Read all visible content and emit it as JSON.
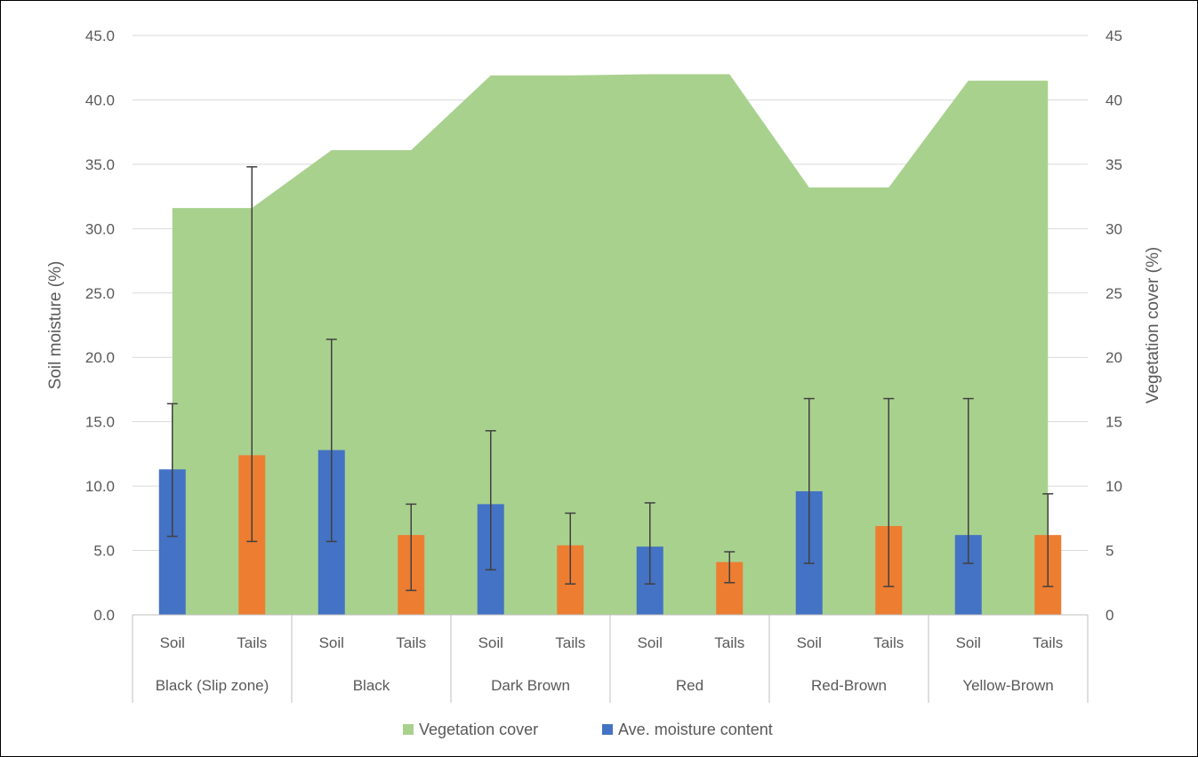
{
  "chart_data": {
    "type": "bar",
    "groups": [
      "Black (Slip zone)",
      "Black",
      "Dark Brown",
      "Red",
      "Red-Brown",
      "Yellow-Brown"
    ],
    "categories": [
      "Soil",
      "Tails",
      "Soil",
      "Tails",
      "Soil",
      "Tails",
      "Soil",
      "Tails",
      "Soil",
      "Tails",
      "Soil",
      "Tails"
    ],
    "series": [
      {
        "name": "Ave. moisture content",
        "type": "bar",
        "axis": "left",
        "color_soil": "#4472C4",
        "color_tails": "#ED7D31",
        "values": [
          11.3,
          12.4,
          12.8,
          6.2,
          8.6,
          5.4,
          5.3,
          4.1,
          9.6,
          6.9,
          6.2,
          6.2
        ],
        "error_low": [
          6.1,
          5.7,
          5.7,
          1.9,
          3.5,
          2.4,
          2.4,
          2.5,
          4.0,
          2.2,
          4.0,
          2.2
        ],
        "error_high": [
          16.4,
          34.8,
          21.4,
          8.6,
          14.3,
          7.9,
          8.7,
          4.9,
          16.8,
          16.8,
          16.8,
          9.4
        ]
      },
      {
        "name": "Vegetation cover",
        "type": "area",
        "axis": "right",
        "color": "#A9D18E",
        "values": [
          31.6,
          31.6,
          36.1,
          36.1,
          41.9,
          41.9,
          42.0,
          42.0,
          33.2,
          33.2,
          41.5,
          41.5
        ]
      }
    ],
    "ylabel": "Soil moisture (%)",
    "y2label": "Vegetation cover (%)",
    "ylim": [
      0,
      45
    ],
    "y2lim": [
      0,
      45
    ],
    "yticks": [
      "0.0",
      "5.0",
      "10.0",
      "15.0",
      "20.0",
      "25.0",
      "30.0",
      "35.0",
      "40.0",
      "45.0"
    ],
    "y2ticks": [
      "0",
      "5",
      "10",
      "15",
      "20",
      "25",
      "30",
      "35",
      "40",
      "45"
    ],
    "grid": true,
    "legend_position": "bottom"
  }
}
